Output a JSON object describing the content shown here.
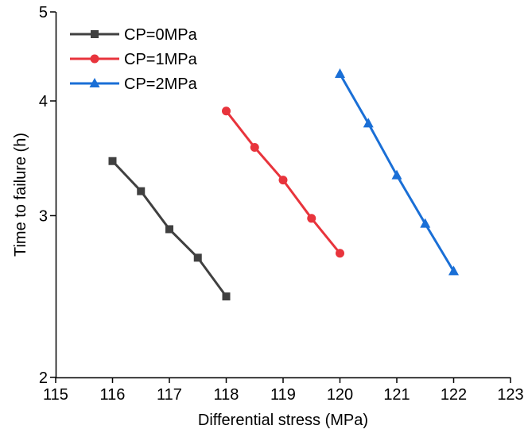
{
  "chart_data": {
    "type": "line",
    "xlabel": "Differential  stress (MPa)",
    "ylabel": "Time to failure (h)",
    "yscale": "log",
    "xlim": [
      115,
      123
    ],
    "xticks": [
      115,
      116,
      117,
      118,
      119,
      120,
      121,
      122,
      123
    ],
    "ylim": [
      2,
      5
    ],
    "yticks": [
      2,
      3,
      4,
      5
    ],
    "legend": "upper left",
    "series": [
      {
        "name": "CP=0MPa",
        "color": "#404040",
        "marker": "square",
        "x": [
          116,
          116.5,
          117,
          117.5,
          118
        ],
        "values": [
          3.44,
          3.19,
          2.9,
          2.7,
          2.45
        ]
      },
      {
        "name": "CP=1MPa",
        "color": "#e8343c",
        "marker": "circle",
        "x": [
          118,
          118.5,
          119,
          119.5,
          120
        ],
        "values": [
          3.9,
          3.56,
          3.28,
          2.98,
          2.73
        ]
      },
      {
        "name": "CP=2MPa",
        "color": "#1a6fd6",
        "marker": "triangle",
        "x": [
          120,
          120.5,
          121,
          121.5,
          122
        ],
        "values": [
          4.28,
          3.78,
          3.32,
          2.94,
          2.61
        ]
      }
    ]
  }
}
